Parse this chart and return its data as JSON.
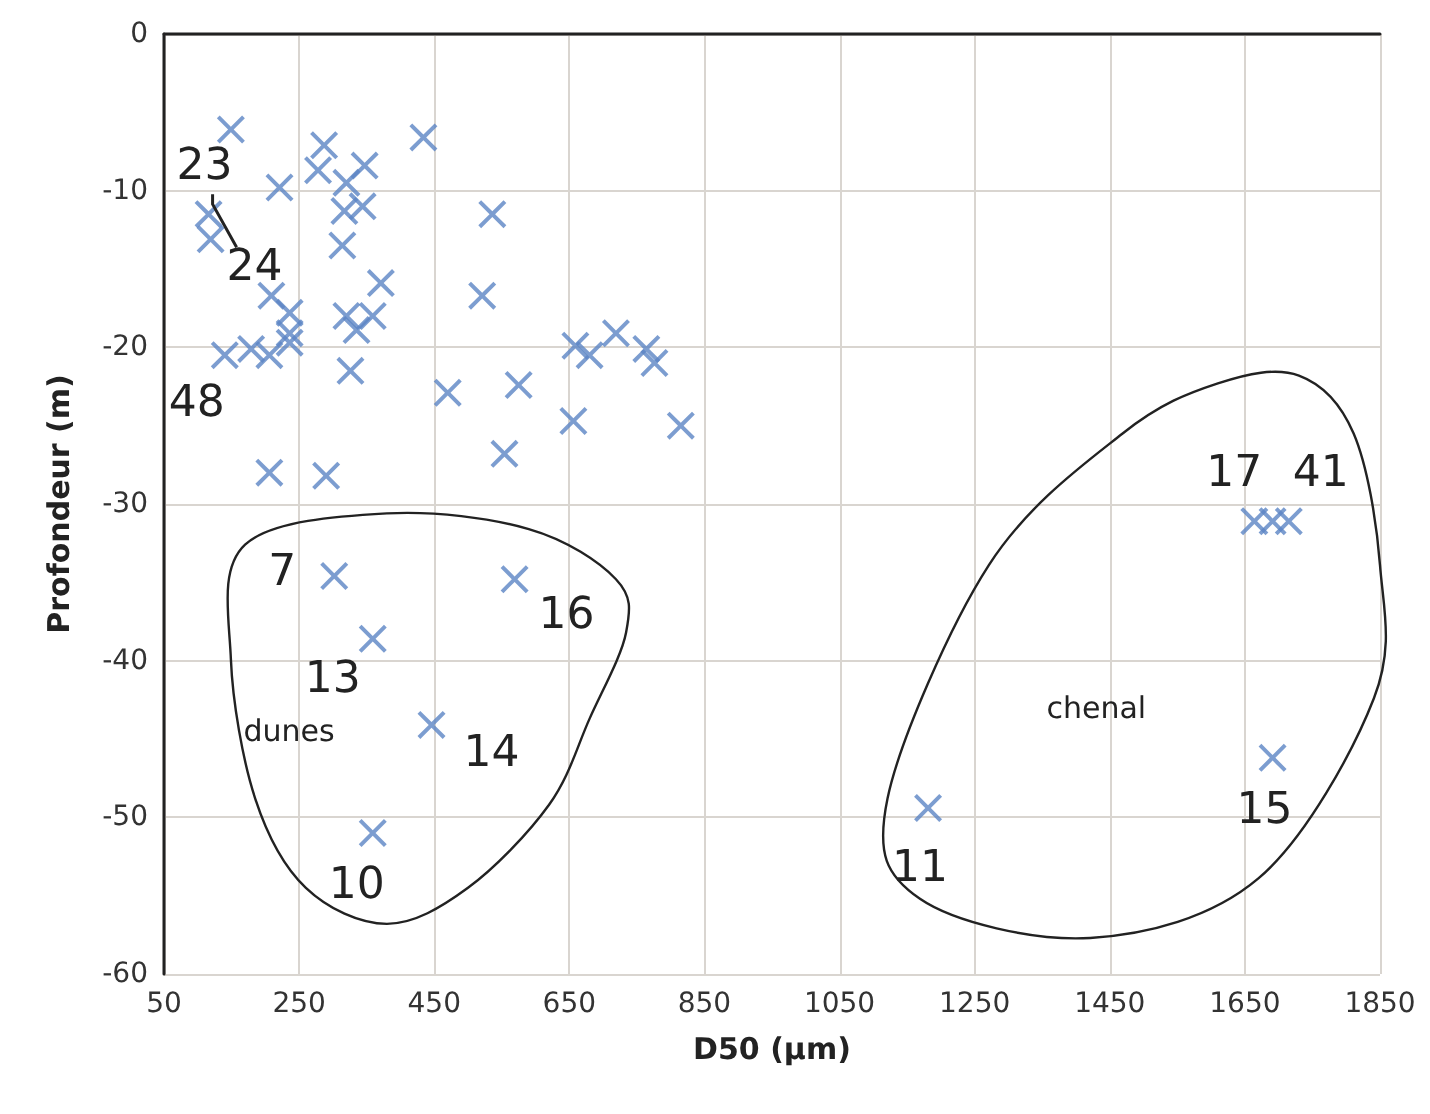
{
  "chart_data": {
    "type": "scatter",
    "xlabel": "D50 (µm)",
    "ylabel": "Profondeur (m)",
    "x": [
      149,
      287,
      278,
      434,
      221,
      347,
      320,
      116,
      119,
      317,
      344,
      314,
      536,
      371,
      521,
      209,
      236,
      236,
      236,
      179,
      206,
      140,
      320,
      359,
      335,
      326,
      470,
      575,
      659,
      680,
      719,
      764,
      776,
      656,
      554,
      815,
      206,
      290,
      302,
      569,
      359,
      446,
      359,
      1181,
      1664,
      1691,
      1715,
      1691
    ],
    "series": [
      {
        "color": "#5b84c4",
        "values": [
          -6.1,
          -7.1,
          -8.7,
          -6.6,
          -9.8,
          -8.4,
          -9.5,
          -11.5,
          -13.1,
          -11.3,
          -11.0,
          -13.5,
          -11.5,
          -15.9,
          -16.7,
          -16.7,
          -17.8,
          -19.1,
          -19.7,
          -20.1,
          -20.5,
          -20.5,
          -18.0,
          -18.0,
          -18.9,
          -21.5,
          -22.9,
          -22.4,
          -19.9,
          -20.5,
          -19.1,
          -20.1,
          -21.0,
          -24.7,
          -26.8,
          -25.0,
          -28.0,
          -28.2,
          -34.6,
          -34.8,
          -38.6,
          -44.1,
          -51.0,
          -49.4,
          -31.1,
          -31.1,
          -31.1,
          -46.2
        ]
      }
    ],
    "xlim": [
      50,
      1850
    ],
    "xticks": [
      50,
      250,
      450,
      650,
      850,
      1050,
      1250,
      1450,
      1650,
      1850
    ],
    "ylim": [
      -60,
      0
    ],
    "yticks": [
      -60,
      -50,
      -40,
      -30,
      -20,
      -10,
      0
    ],
    "grid": true,
    "marker": "cross",
    "annotations": [
      {
        "text": "23",
        "x": 116,
        "y": -11.5
      },
      {
        "text": "24",
        "x": 119,
        "y": -13.1
      },
      {
        "text": "48",
        "x": 140,
        "y": -20.5
      },
      {
        "text": "7",
        "x": 302,
        "y": -34.6
      },
      {
        "text": "16",
        "x": 569,
        "y": -34.8
      },
      {
        "text": "13",
        "x": 359,
        "y": -38.6
      },
      {
        "text": "14",
        "x": 446,
        "y": -44.1
      },
      {
        "text": "10",
        "x": 359,
        "y": -51.0
      },
      {
        "text": "11",
        "x": 1181,
        "y": -49.4
      },
      {
        "text": "17",
        "x": 1664,
        "y": -31.1
      },
      {
        "text": "41",
        "x": 1715,
        "y": -31.1
      },
      {
        "text": "15",
        "x": 1691,
        "y": -46.2
      },
      "dunes",
      "chenal"
    ]
  }
}
